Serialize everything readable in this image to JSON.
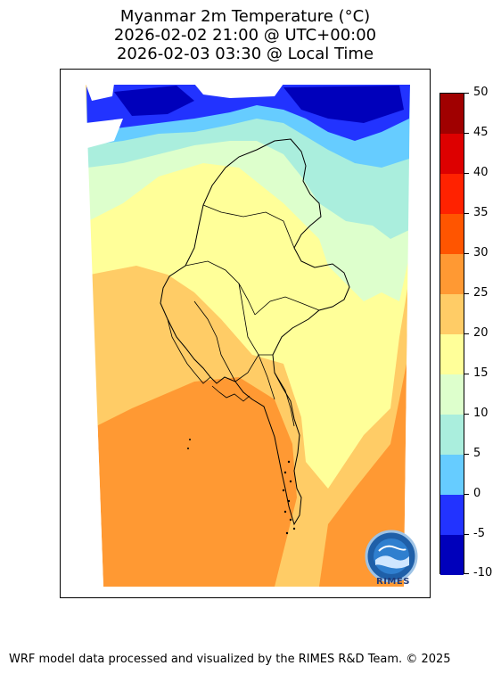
{
  "title": {
    "line1": "Myanmar 2m Temperature (°C)",
    "line2": "2026-02-02 21:00 @ UTC+00:00",
    "line3": "2026-02-03 03:30 @ Local Time"
  },
  "colorbar": {
    "ticks": [
      "50",
      "45",
      "40",
      "35",
      "30",
      "25",
      "20",
      "15",
      "10",
      "5",
      "0",
      "-5",
      "-10"
    ],
    "colors": [
      "#a00000",
      "#dd0000",
      "#ff2200",
      "#ff5500",
      "#ff9933",
      "#ffcc66",
      "#ffff99",
      "#ddffcc",
      "#aaeedd",
      "#66ccff",
      "#2233ff",
      "#0000bb"
    ]
  },
  "logo": {
    "text": "RIMES",
    "icon": "rimes-globe-logo"
  },
  "footer": {
    "credit": "WRF model data processed and visualized by the RIMES R&D Team. © 2025"
  }
}
